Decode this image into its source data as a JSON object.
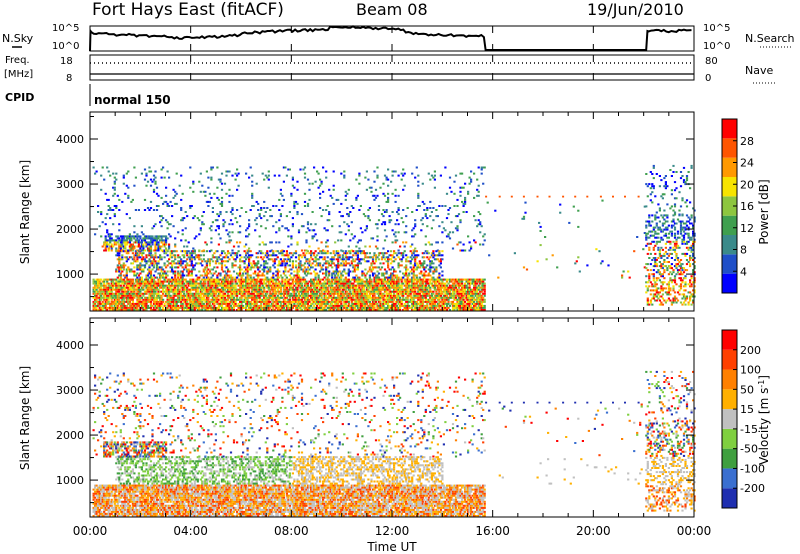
{
  "header": {
    "station": "Fort Hays East (fitACF)",
    "beam": "Beam 08",
    "date": "19/Jun/2010"
  },
  "noise_panel": {
    "left_label": "N.Sky",
    "right_label": "N.Search",
    "left_ticks": [
      "10^5",
      "10^0"
    ],
    "right_ticks": [
      "10^5",
      "10^0"
    ]
  },
  "freq_panel": {
    "left_label": "Freq.",
    "left_unit": "[MHz]",
    "left_ticks": [
      "18",
      "8"
    ],
    "right_label": "Nave",
    "right_ticks": [
      "80",
      "0"
    ],
    "cpid_label": "CPID",
    "mode_label": "normal 150"
  },
  "chart_data": [
    {
      "type": "heatmap",
      "name": "power",
      "ylabel": "Slant Range [km]",
      "xlabel": "",
      "ylim": [
        180,
        4600
      ],
      "xlim": [
        0,
        24
      ],
      "x_tick_labels": [
        "00:00",
        "04:00",
        "08:00",
        "12:00",
        "16:00",
        "20:00",
        "00:00"
      ],
      "y_ticks": [
        1000,
        2000,
        3000,
        4000
      ],
      "colorbar": {
        "label": "Power [dB]",
        "range": [
          0,
          32
        ],
        "tick_values": [
          4,
          8,
          12,
          16,
          20,
          24,
          28
        ],
        "tick_labels": [
          "4",
          "8",
          "12",
          "16",
          "20",
          "24",
          "28"
        ],
        "colors": [
          "#0000ff",
          "#1f4fc8",
          "#3a8a8a",
          "#3f9f4f",
          "#8dc63f",
          "#f7e400",
          "#ff9900",
          "#ff5500",
          "#ff0000"
        ]
      }
    },
    {
      "type": "heatmap",
      "name": "velocity",
      "ylabel": "Slant Range [km]",
      "xlabel": "Time UT",
      "ylim": [
        180,
        4600
      ],
      "xlim": [
        0,
        24
      ],
      "x_tick_labels": [
        "00:00",
        "04:00",
        "08:00",
        "12:00",
        "16:00",
        "20:00",
        "00:00"
      ],
      "y_ticks": [
        1000,
        2000,
        3000,
        4000
      ],
      "colorbar": {
        "label": "Velocity [m s^-1]",
        "tick_labels": [
          "200",
          "100",
          "50",
          "15",
          "-15",
          "-50",
          "-100",
          "-200"
        ],
        "colors": [
          "#1f2fb0",
          "#3a6fd0",
          "#3f9f3f",
          "#7fcf3f",
          "#c0c0c0",
          "#ffb000",
          "#ff8000",
          "#ff4000",
          "#ff0000"
        ]
      }
    }
  ]
}
